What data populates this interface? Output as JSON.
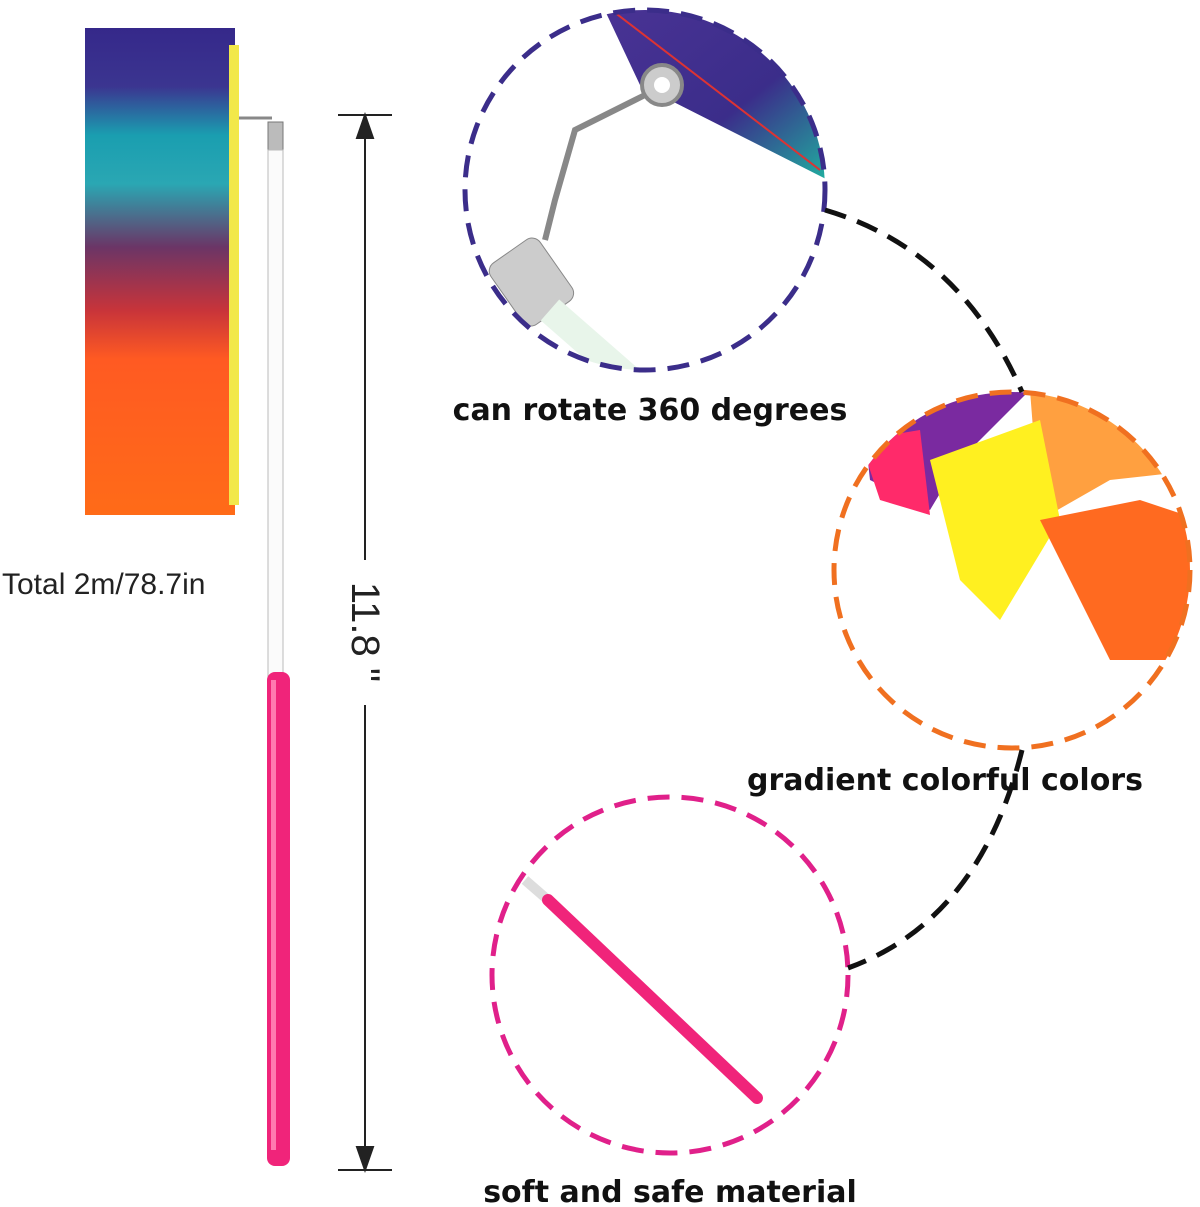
{
  "labels": {
    "total_length": "Total 2m/78.7in",
    "stick_length": "11.8 \"",
    "rotate": "can rotate 360 degrees",
    "colors": "gradient colorful colors",
    "material": "soft and safe material"
  }
}
